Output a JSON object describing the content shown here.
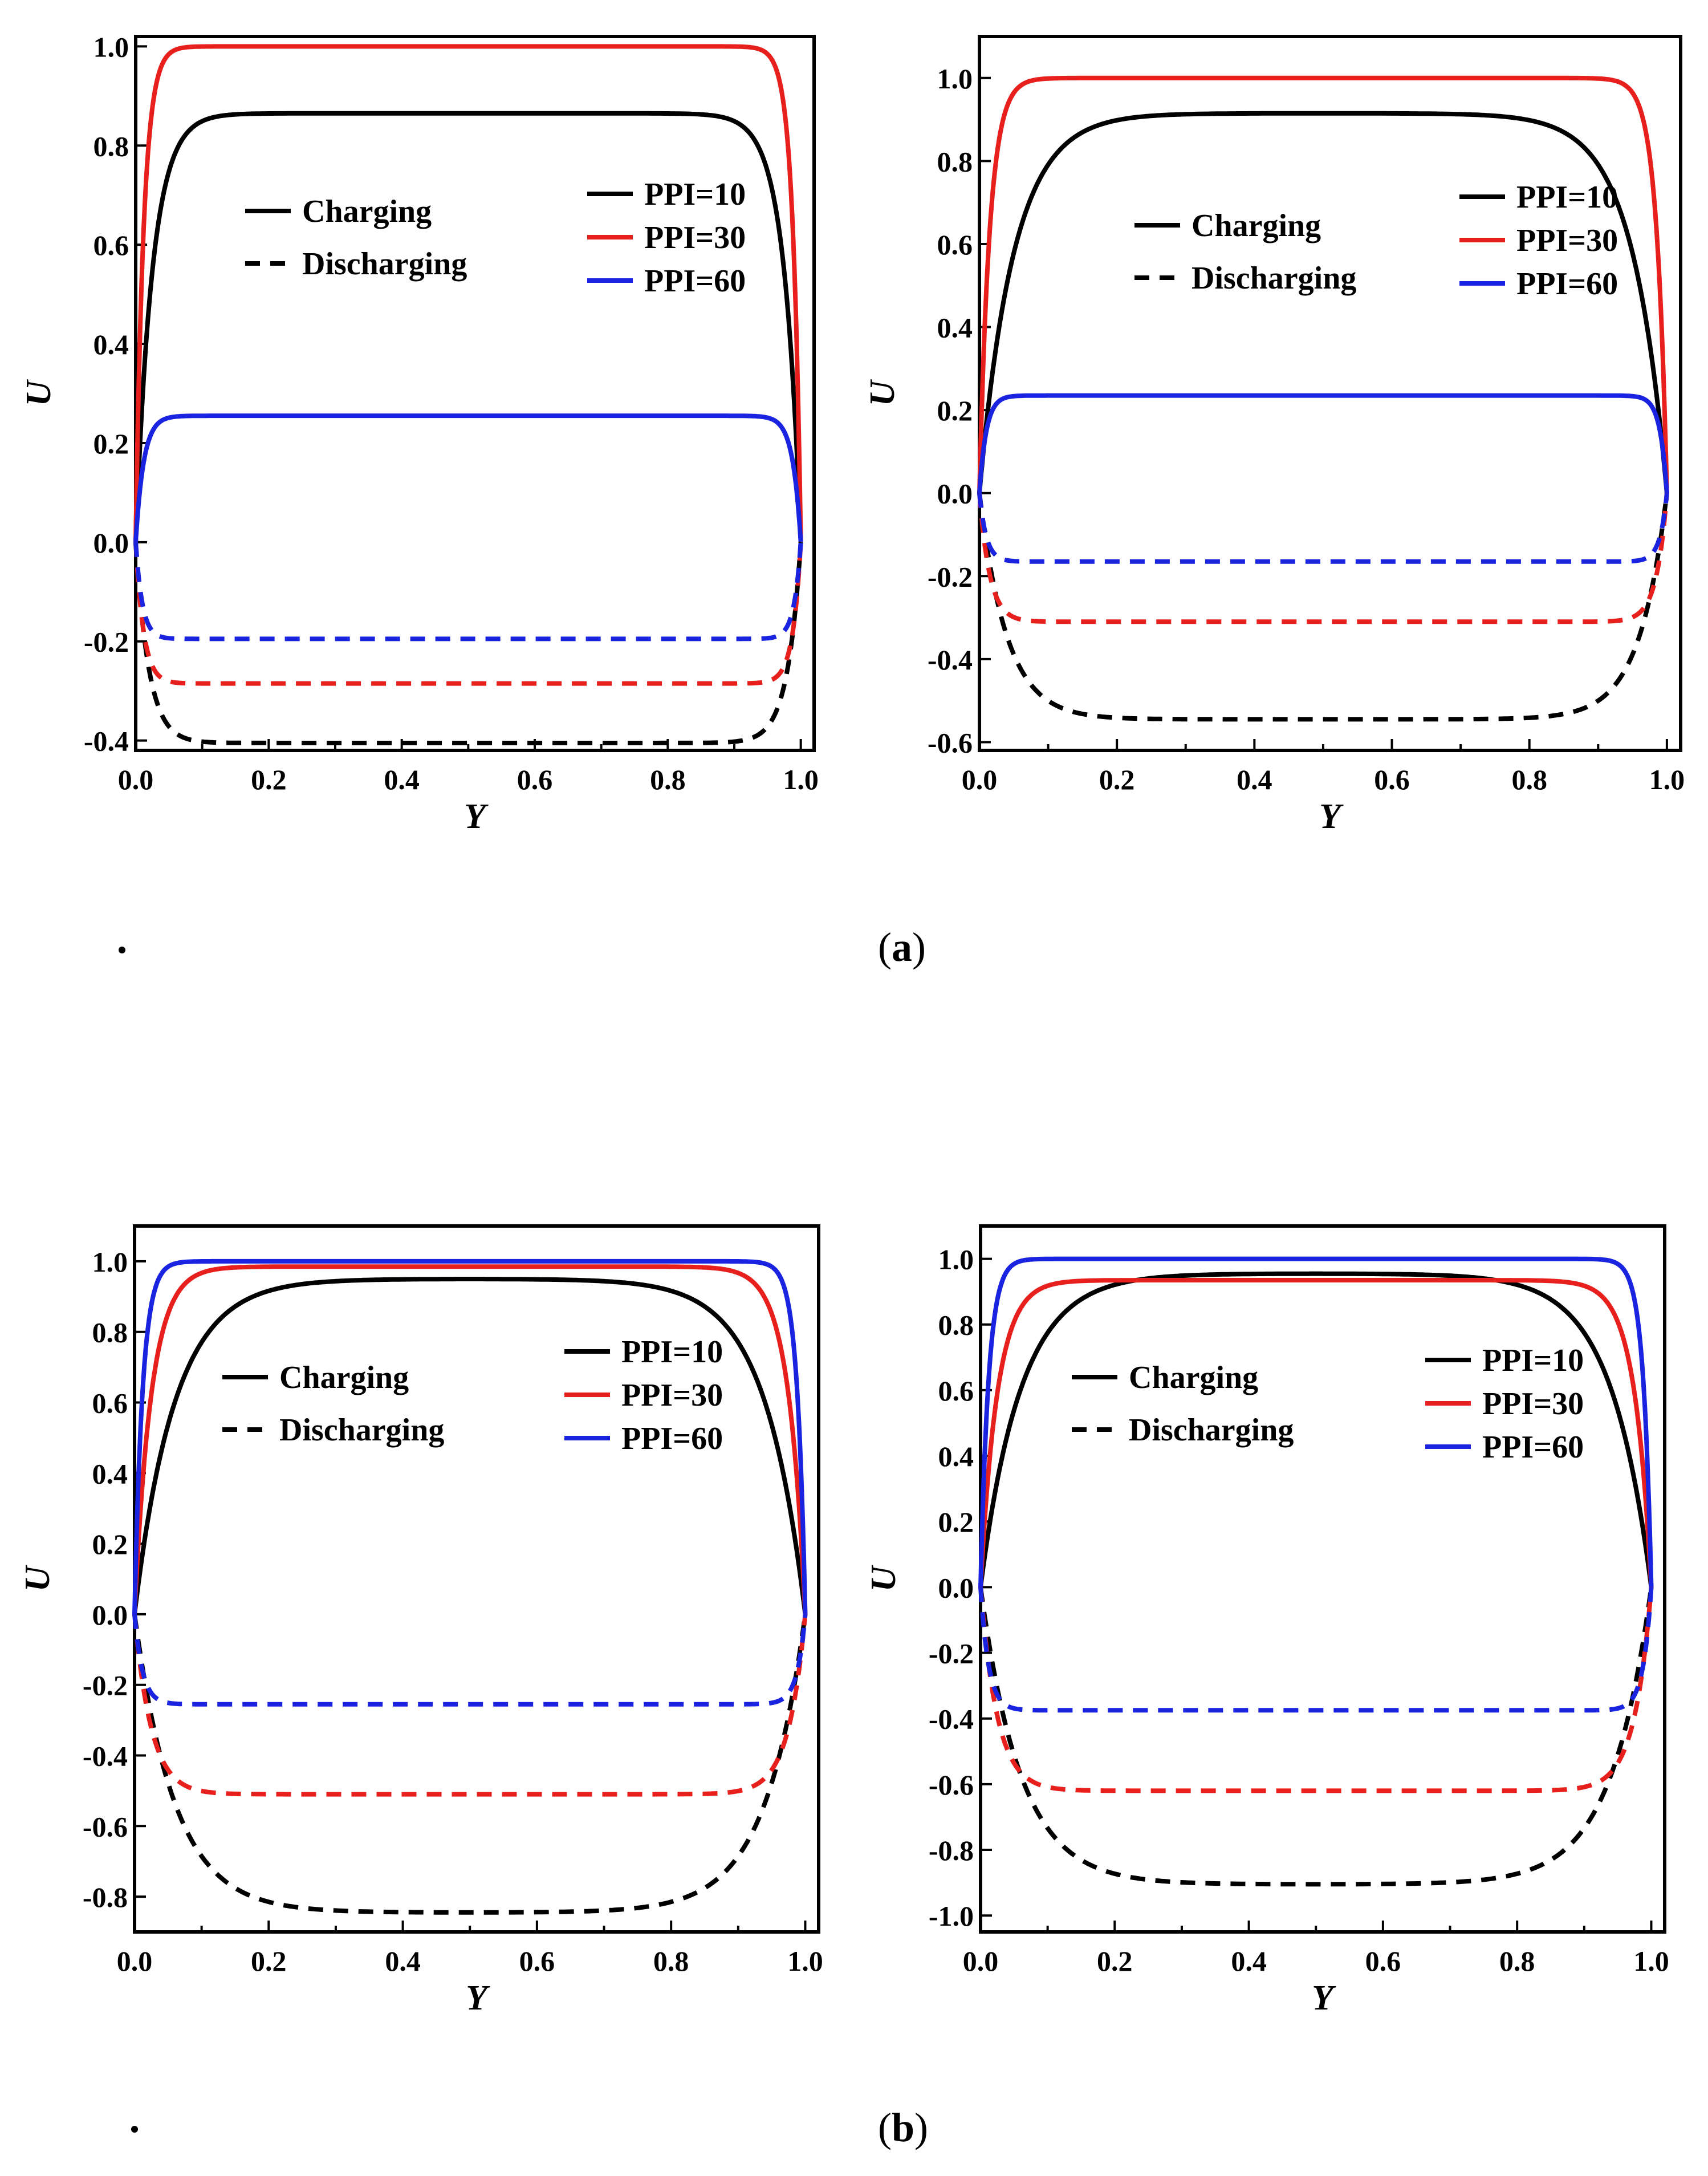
{
  "chart_data": [
    {
      "type": "line",
      "panel": "a-left",
      "xlabel": "Y",
      "ylabel": "U",
      "xlim": [
        0,
        1.02
      ],
      "ylim": [
        -0.42,
        1.02
      ],
      "xticks": [
        0.0,
        0.2,
        0.4,
        0.6,
        0.8,
        1.0
      ],
      "yticks": [
        -0.4,
        -0.2,
        0.0,
        0.2,
        0.4,
        0.6,
        0.8,
        1.0
      ],
      "ytick_labels": [
        "-0.4",
        "-0.2",
        "0.0",
        "0.2",
        "0.4",
        "0.6",
        "0.8",
        "1.0"
      ],
      "legend_style": [
        "Charging",
        "Discharging"
      ],
      "legend_series": [
        "PPI=10",
        "PPI=30",
        "PPI=60"
      ],
      "series": [
        {
          "name": "PPI=10",
          "mode": "Charging",
          "color": "#000000",
          "plateau": 0.865,
          "edge": 0.025
        },
        {
          "name": "PPI=30",
          "mode": "Charging",
          "color": "#e8201d",
          "plateau": 1.0,
          "edge": 0.012
        },
        {
          "name": "PPI=60",
          "mode": "Charging",
          "color": "#1a24e0",
          "plateau": 0.255,
          "edge": 0.012
        },
        {
          "name": "PPI=10",
          "mode": "Discharging",
          "color": "#000000",
          "plateau": -0.405,
          "edge": 0.02
        },
        {
          "name": "PPI=30",
          "mode": "Discharging",
          "color": "#e8201d",
          "plateau": -0.285,
          "edge": 0.012
        },
        {
          "name": "PPI=60",
          "mode": "Discharging",
          "color": "#1a24e0",
          "plateau": -0.195,
          "edge": 0.01
        }
      ]
    },
    {
      "type": "line",
      "panel": "a-right",
      "xlabel": "Y",
      "ylabel": "U",
      "xlim": [
        0,
        1.02
      ],
      "ylim": [
        -0.62,
        1.1
      ],
      "xticks": [
        0.0,
        0.2,
        0.4,
        0.6,
        0.8,
        1.0
      ],
      "yticks": [
        -0.6,
        -0.4,
        -0.2,
        0.0,
        0.2,
        0.4,
        0.6,
        0.8,
        1.0
      ],
      "ytick_labels": [
        "-0.6",
        "-0.4",
        "-0.2",
        "0.0",
        "0.2",
        "0.4",
        "0.6",
        "0.8",
        "1.0"
      ],
      "legend_style": [
        "Charging",
        "Discharging"
      ],
      "legend_series": [
        "PPI=10",
        "PPI=30",
        "PPI=60"
      ],
      "series": [
        {
          "name": "PPI=10",
          "mode": "Charging",
          "color": "#000000",
          "plateau": 0.915,
          "edge": 0.05
        },
        {
          "name": "PPI=30",
          "mode": "Charging",
          "color": "#e8201d",
          "plateau": 1.0,
          "edge": 0.015
        },
        {
          "name": "PPI=60",
          "mode": "Charging",
          "color": "#1a24e0",
          "plateau": 0.235,
          "edge": 0.01
        },
        {
          "name": "PPI=10",
          "mode": "Discharging",
          "color": "#000000",
          "plateau": -0.545,
          "edge": 0.04
        },
        {
          "name": "PPI=30",
          "mode": "Discharging",
          "color": "#e8201d",
          "plateau": -0.31,
          "edge": 0.015
        },
        {
          "name": "PPI=60",
          "mode": "Discharging",
          "color": "#1a24e0",
          "plateau": -0.165,
          "edge": 0.01
        }
      ]
    },
    {
      "type": "line",
      "panel": "b-left",
      "xlabel": "Y",
      "ylabel": "U",
      "xlim": [
        0,
        1.02
      ],
      "ylim": [
        -0.9,
        1.1
      ],
      "xticks": [
        0.0,
        0.2,
        0.4,
        0.6,
        0.8,
        1.0
      ],
      "yticks": [
        -0.8,
        -0.6,
        -0.4,
        -0.2,
        0.0,
        0.2,
        0.4,
        0.6,
        0.8,
        1.0
      ],
      "ytick_labels": [
        "-0.8",
        "-0.6",
        "-0.4",
        "-0.2",
        "0.0",
        "0.2",
        "0.4",
        "0.6",
        "0.8",
        "1.0"
      ],
      "legend_style": [
        "Charging",
        "Discharging"
      ],
      "legend_series": [
        "PPI=10",
        "PPI=30",
        "PPI=60"
      ],
      "series": [
        {
          "name": "PPI=10",
          "mode": "Charging",
          "color": "#000000",
          "plateau": 0.95,
          "edge": 0.06
        },
        {
          "name": "PPI=30",
          "mode": "Charging",
          "color": "#e8201d",
          "plateau": 0.985,
          "edge": 0.025
        },
        {
          "name": "PPI=60",
          "mode": "Charging",
          "color": "#1a24e0",
          "plateau": 1.0,
          "edge": 0.012
        },
        {
          "name": "PPI=10",
          "mode": "Discharging",
          "color": "#000000",
          "plateau": -0.845,
          "edge": 0.06
        },
        {
          "name": "PPI=30",
          "mode": "Discharging",
          "color": "#e8201d",
          "plateau": -0.51,
          "edge": 0.025
        },
        {
          "name": "PPI=60",
          "mode": "Discharging",
          "color": "#1a24e0",
          "plateau": -0.255,
          "edge": 0.012
        }
      ]
    },
    {
      "type": "line",
      "panel": "b-right",
      "xlabel": "Y",
      "ylabel": "U",
      "xlim": [
        0,
        1.02
      ],
      "ylim": [
        -1.05,
        1.1
      ],
      "xticks": [
        0.0,
        0.2,
        0.4,
        0.6,
        0.8,
        1.0
      ],
      "yticks": [
        -1.0,
        -0.8,
        -0.6,
        -0.4,
        -0.2,
        0.0,
        0.2,
        0.4,
        0.6,
        0.8,
        1.0
      ],
      "ytick_labels": [
        "-1.0",
        "-0.8",
        "-0.6",
        "-0.4",
        "-0.2",
        "0.0",
        "0.2",
        "0.4",
        "0.6",
        "0.8",
        "1.0"
      ],
      "legend_style": [
        "Charging",
        "Discharging"
      ],
      "legend_series": [
        "PPI=10",
        "PPI=30",
        "PPI=60"
      ],
      "series": [
        {
          "name": "PPI=10",
          "mode": "Charging",
          "color": "#000000",
          "plateau": 0.955,
          "edge": 0.06
        },
        {
          "name": "PPI=30",
          "mode": "Charging",
          "color": "#e8201d",
          "plateau": 0.935,
          "edge": 0.025
        },
        {
          "name": "PPI=60",
          "mode": "Charging",
          "color": "#1a24e0",
          "plateau": 1.0,
          "edge": 0.012
        },
        {
          "name": "PPI=10",
          "mode": "Discharging",
          "color": "#000000",
          "plateau": -0.905,
          "edge": 0.06
        },
        {
          "name": "PPI=30",
          "mode": "Discharging",
          "color": "#e8201d",
          "plateau": -0.62,
          "edge": 0.025
        },
        {
          "name": "PPI=60",
          "mode": "Discharging",
          "color": "#1a24e0",
          "plateau": -0.375,
          "edge": 0.012
        }
      ]
    }
  ],
  "captions": {
    "a_open": "(",
    "a_letter": "a",
    "a_close": ")",
    "b_open": "(",
    "b_letter": "b",
    "b_close": ")"
  }
}
